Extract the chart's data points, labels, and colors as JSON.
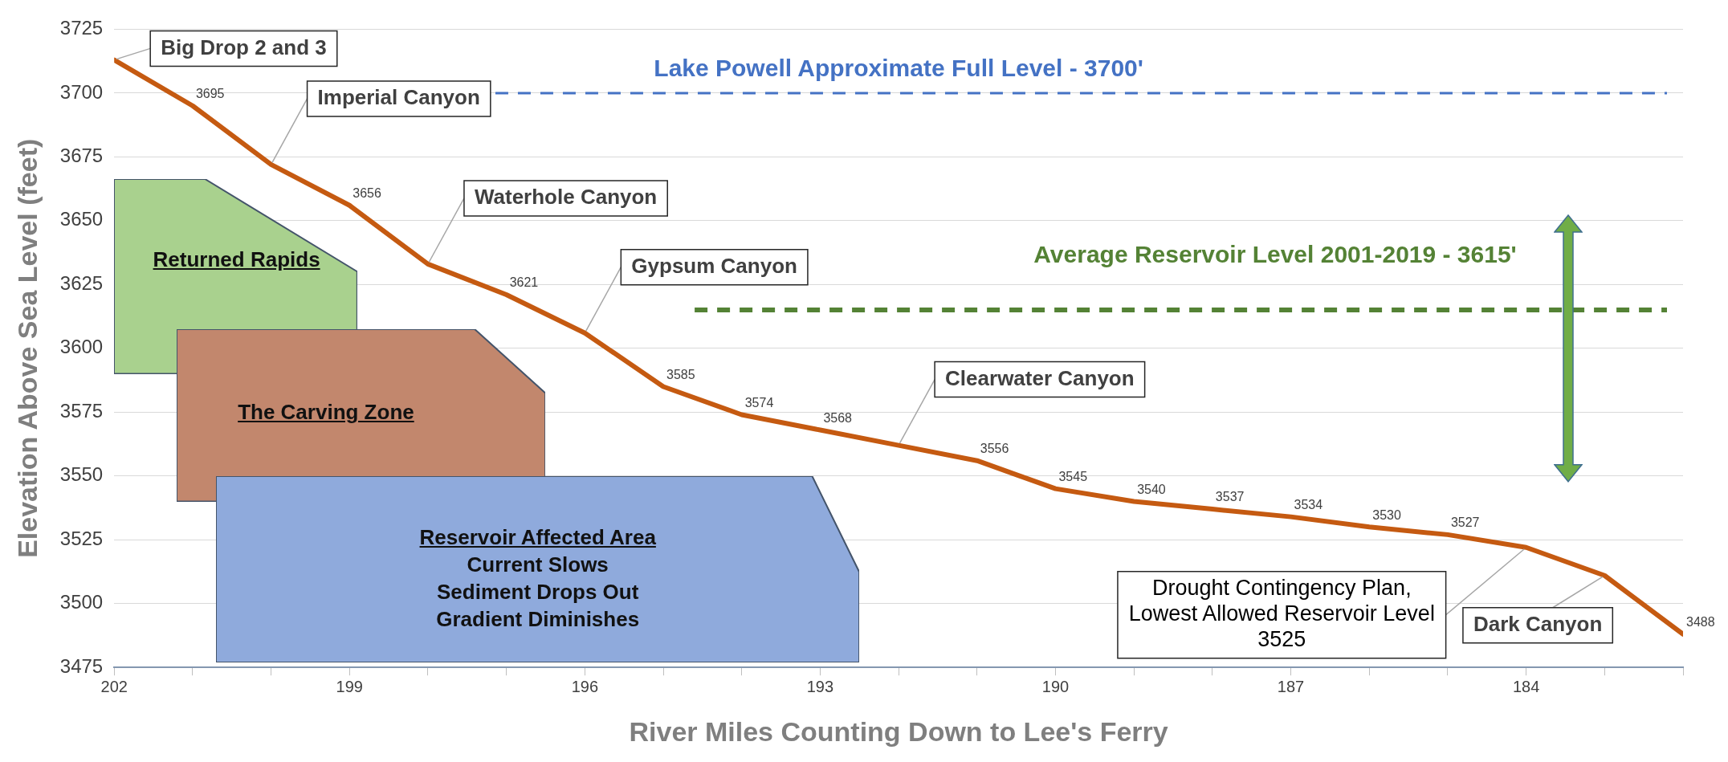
{
  "chart_data": {
    "type": "line",
    "xlabel": "River Miles Counting Down to Lee's Ferry",
    "ylabel": "Elevation Above Sea Level (feet)",
    "x": [
      202,
      201,
      200,
      199,
      198,
      197,
      196,
      195,
      194,
      193,
      192,
      191,
      190,
      189,
      188,
      187,
      186,
      185,
      184,
      183,
      182
    ],
    "series": [
      {
        "color": "#c55a11",
        "values": [
          3713,
          3695,
          3672,
          3656,
          3633,
          3621,
          3606,
          3585,
          3574,
          3568,
          3562,
          3556,
          3545,
          3540,
          3537,
          3534,
          3530,
          3527,
          3522,
          3511,
          3488
        ],
        "value_labels": [
          null,
          "3695",
          null,
          "3656",
          null,
          "3621",
          null,
          "3585",
          "3574",
          "3568",
          null,
          "3556",
          "3545",
          "3540",
          "3537",
          "3534",
          "3530",
          "3527",
          null,
          null,
          "3488"
        ]
      }
    ],
    "xlim": [
      202,
      182
    ],
    "xticks": [
      202,
      {
        "value": 201,
        "label": null
      },
      {
        "value": 200,
        "label": null
      },
      199,
      {
        "value": 198,
        "label": null
      },
      {
        "value": 197,
        "label": null
      },
      196,
      {
        "value": 195,
        "label": null
      },
      {
        "value": 194,
        "label": null
      },
      193,
      {
        "value": 192,
        "label": null
      },
      {
        "value": 191,
        "label": null
      },
      190,
      {
        "value": 189,
        "label": null
      },
      {
        "value": 188,
        "label": null
      },
      187,
      {
        "value": 186,
        "label": null
      },
      {
        "value": 185,
        "label": null
      },
      184,
      {
        "value": 183,
        "label": null
      },
      {
        "value": 182,
        "label": null
      }
    ],
    "ylim": [
      3475,
      3725
    ],
    "yticks": [
      3475,
      3500,
      3525,
      3550,
      3575,
      3600,
      3625,
      3650,
      3675,
      3700,
      3725
    ],
    "grid": "y",
    "legend": false,
    "marker": "none",
    "line_style": "solid",
    "ref_lines": [
      {
        "axis": "y",
        "value": 3700,
        "label": "Lake Powell Approximate Full Level - 3700'",
        "color": "#4472c4",
        "line_style": "dashed"
      },
      {
        "axis": "y",
        "value": 3615,
        "label": "Average Reservoir Level 2001-2019 - 3615'",
        "color": "#548235",
        "line_style": "dashed"
      }
    ],
    "annotations": [
      {
        "text": "Big Drop 2 and 3",
        "x": 202,
        "y": 3713
      },
      {
        "text": "Imperial Canyon",
        "x": 200,
        "y": 3672
      },
      {
        "text": "Waterhole Canyon",
        "x": 198,
        "y": 3633
      },
      {
        "text": "Gypsum Canyon",
        "x": 196,
        "y": 3606
      },
      {
        "text": "Clearwater Canyon",
        "x": 192,
        "y": 3562
      },
      {
        "text": "Drought Contingency Plan,\nLowest Allowed Reservoir Level\n3525",
        "x": 184,
        "y": 3522
      },
      {
        "text": "Dark Canyon",
        "x": 183,
        "y": 3511
      },
      "Returned Rapids",
      "The Carving Zone",
      "Reservoir Affected Area\nCurrent Slows\nSediment Drops Out\nGradient Diminishes"
    ]
  }
}
